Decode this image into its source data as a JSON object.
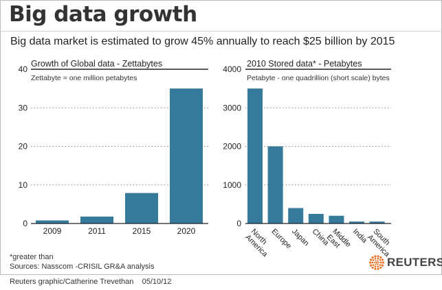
{
  "header": {
    "title": "Big data growth",
    "subtitle": "Big data market is estimated to grow 45% annually to reach $25 billion by 2015"
  },
  "chart_data": [
    {
      "type": "bar",
      "title": "Growth of Global data - Zettabytes",
      "subtitle": "Zettabyte = one million petabytes",
      "categories": [
        "2009",
        "2011",
        "2015",
        "2020"
      ],
      "values": [
        0.8,
        1.8,
        7.9,
        35
      ],
      "ylim": [
        0,
        40
      ],
      "yticks": [
        0,
        10,
        20,
        30,
        40
      ],
      "grid": true,
      "color": "#357a9b"
    },
    {
      "type": "bar",
      "title": "2010 Stored data* - Petabytes",
      "subtitle": "Petabyte - one quadrillion (short scale) bytes",
      "categories": [
        "North America",
        "Europe",
        "Japan",
        "China",
        "Middle East",
        "India",
        "South America"
      ],
      "values": [
        3500,
        2000,
        400,
        250,
        200,
        50,
        50
      ],
      "ylim": [
        0,
        4000
      ],
      "yticks": [
        0,
        1000,
        2000,
        3000,
        4000
      ],
      "grid": true,
      "color": "#357a9b"
    }
  ],
  "footer": {
    "note": "*greater than",
    "sources": "Sources: Nasscom -CRISIL GR&A analysis",
    "brand": "REUTERS",
    "credit": "Reuters graphic/Catherine Trevethan    05/10/12"
  },
  "colors": {
    "bar": "#357a9b",
    "logo": "#e8752a"
  }
}
